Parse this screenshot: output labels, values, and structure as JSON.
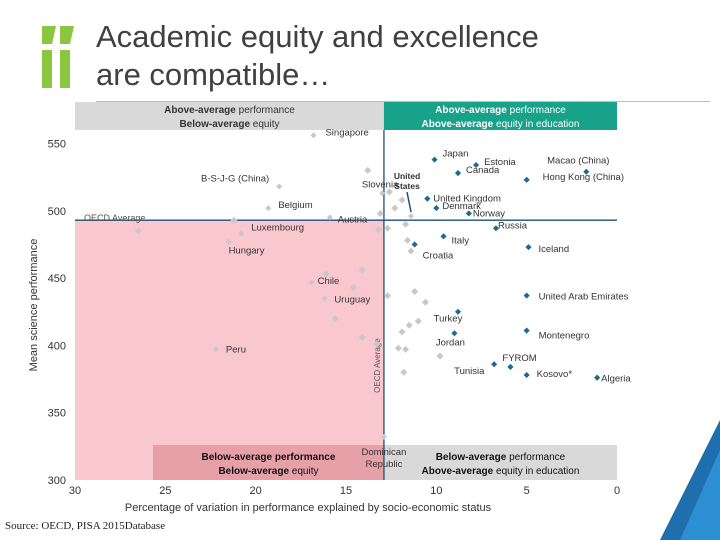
{
  "title": {
    "line1": "Academic equity and excellence",
    "line2": "are compatible…"
  },
  "source": "Source: OECD, PISA 2015Database",
  "colors": {
    "oecd_green": "#8cc63f",
    "pink": "#f9c7ce",
    "red_box": "#e8a0a8",
    "teal": "#19a28a",
    "grey_box": "#d9d9d9",
    "dark_blue": "#1f4e79",
    "point": "#c8c8c8",
    "highlight": "#1f6b8f"
  },
  "quadrant_labels": {
    "top_left": {
      "line1_bold": "Above-average",
      "line1_rest": " performance",
      "line2_bold": "Below-average",
      "line2_rest": " equity"
    },
    "top_right": {
      "line1_bold": "Above-average",
      "line1_rest": " performance",
      "line2_bold": "Above-average",
      "line2_rest": " equity in education"
    },
    "bottom_left": {
      "line1_bold": "Below-average performance",
      "line1_rest": "",
      "line2_bold": "Below-average",
      "line2_rest": " equity"
    },
    "bottom_right": {
      "line1_bold": "Below-average",
      "line1_rest": " performance",
      "line2_bold": "Above-average",
      "line2_rest": " equity in education"
    }
  },
  "oecd_average_label": "OECD Average",
  "chart_data": {
    "type": "scatter",
    "xlabel": "Percentage of variation in performance explained by socio-economic status",
    "ylabel": "Mean science performance",
    "x_reversed": true,
    "xlim": [
      30,
      0
    ],
    "ylim": [
      300,
      560
    ],
    "x_ticks": [
      30,
      25,
      20,
      15,
      10,
      5,
      0
    ],
    "y_ticks": [
      300,
      350,
      400,
      450,
      500,
      550
    ],
    "oecd_average": {
      "x": 12.9,
      "y": 493
    },
    "points": [
      {
        "label": "Singapore",
        "x": 16.8,
        "y": 556,
        "highlight": false
      },
      {
        "label": "B-S-J-G (China)",
        "x": 18.7,
        "y": 518,
        "highlight": false
      },
      {
        "label": "Belgium",
        "x": 19.3,
        "y": 502,
        "highlight": false
      },
      {
        "label": "Slovenia",
        "x": 13.0,
        "y": 513,
        "highlight": false
      },
      {
        "label": "Austria",
        "x": 15.9,
        "y": 495,
        "highlight": false
      },
      {
        "label": "Luxembourg",
        "x": 20.8,
        "y": 483,
        "highlight": false
      },
      {
        "label": "Hungary",
        "x": 21.5,
        "y": 477,
        "highlight": false
      },
      {
        "label": "Chile",
        "x": 16.9,
        "y": 447,
        "highlight": false
      },
      {
        "label": "Uruguay",
        "x": 16.2,
        "y": 435,
        "highlight": false
      },
      {
        "label": "Peru",
        "x": 22.2,
        "y": 397,
        "highlight": false
      },
      {
        "label": "Dominican Republic",
        "x": 12.9,
        "y": 332,
        "highlight": false
      },
      {
        "label": "United States",
        "x": 11.4,
        "y": 496,
        "highlight": false
      },
      {
        "label": "Japan",
        "x": 10.1,
        "y": 538,
        "highlight": true
      },
      {
        "label": "Estonia",
        "x": 7.8,
        "y": 534,
        "highlight": true
      },
      {
        "label": "Macao (China)",
        "x": 1.7,
        "y": 529,
        "highlight": true
      },
      {
        "label": "Hong Kong (China)",
        "x": 5.0,
        "y": 523,
        "highlight": true
      },
      {
        "label": "Canada",
        "x": 8.8,
        "y": 528,
        "highlight": true
      },
      {
        "label": "United Kingdom",
        "x": 10.5,
        "y": 509,
        "highlight": true
      },
      {
        "label": "Denmark",
        "x": 10.0,
        "y": 502,
        "highlight": true
      },
      {
        "label": "Norway",
        "x": 8.2,
        "y": 498,
        "highlight": true
      },
      {
        "label": "Russia",
        "x": 6.7,
        "y": 487,
        "highlight": true
      },
      {
        "label": "Italy",
        "x": 9.6,
        "y": 481,
        "highlight": true
      },
      {
        "label": "Iceland",
        "x": 4.9,
        "y": 473,
        "highlight": true
      },
      {
        "label": "Croatia",
        "x": 11.2,
        "y": 475,
        "highlight": true
      },
      {
        "label": "Turkey",
        "x": 8.8,
        "y": 425,
        "highlight": true
      },
      {
        "label": "United Arab Emirates",
        "x": 5.0,
        "y": 437,
        "highlight": true
      },
      {
        "label": "Jordan",
        "x": 9.0,
        "y": 409,
        "highlight": true
      },
      {
        "label": "Montenegro",
        "x": 5.0,
        "y": 411,
        "highlight": true
      },
      {
        "label": "Tunisia",
        "x": 6.8,
        "y": 386,
        "highlight": true
      },
      {
        "label": "FYROM",
        "x": 5.9,
        "y": 384,
        "highlight": true
      },
      {
        "label": "Kosovo*",
        "x": 5.0,
        "y": 378,
        "highlight": true
      },
      {
        "label": "Algeria",
        "x": 1.1,
        "y": 376,
        "highlight": true
      }
    ],
    "background_points": [
      {
        "x": 13.8,
        "y": 530
      },
      {
        "x": 12.6,
        "y": 514
      },
      {
        "x": 11.9,
        "y": 508
      },
      {
        "x": 12.3,
        "y": 502
      },
      {
        "x": 13.1,
        "y": 498
      },
      {
        "x": 11.7,
        "y": 490
      },
      {
        "x": 12.7,
        "y": 487
      },
      {
        "x": 11.6,
        "y": 478
      },
      {
        "x": 13.2,
        "y": 486
      },
      {
        "x": 11.4,
        "y": 470
      },
      {
        "x": 14.1,
        "y": 456
      },
      {
        "x": 16.1,
        "y": 453
      },
      {
        "x": 14.6,
        "y": 443
      },
      {
        "x": 11.2,
        "y": 440
      },
      {
        "x": 12.7,
        "y": 437
      },
      {
        "x": 10.6,
        "y": 432
      },
      {
        "x": 15.6,
        "y": 420
      },
      {
        "x": 11.0,
        "y": 418
      },
      {
        "x": 11.5,
        "y": 415
      },
      {
        "x": 11.9,
        "y": 410
      },
      {
        "x": 14.1,
        "y": 406
      },
      {
        "x": 13.3,
        "y": 401
      },
      {
        "x": 11.7,
        "y": 397
      },
      {
        "x": 9.8,
        "y": 392
      },
      {
        "x": 12.1,
        "y": 398
      },
      {
        "x": 11.8,
        "y": 380
      },
      {
        "x": 26.5,
        "y": 485
      },
      {
        "x": 21.2,
        "y": 493
      }
    ]
  }
}
